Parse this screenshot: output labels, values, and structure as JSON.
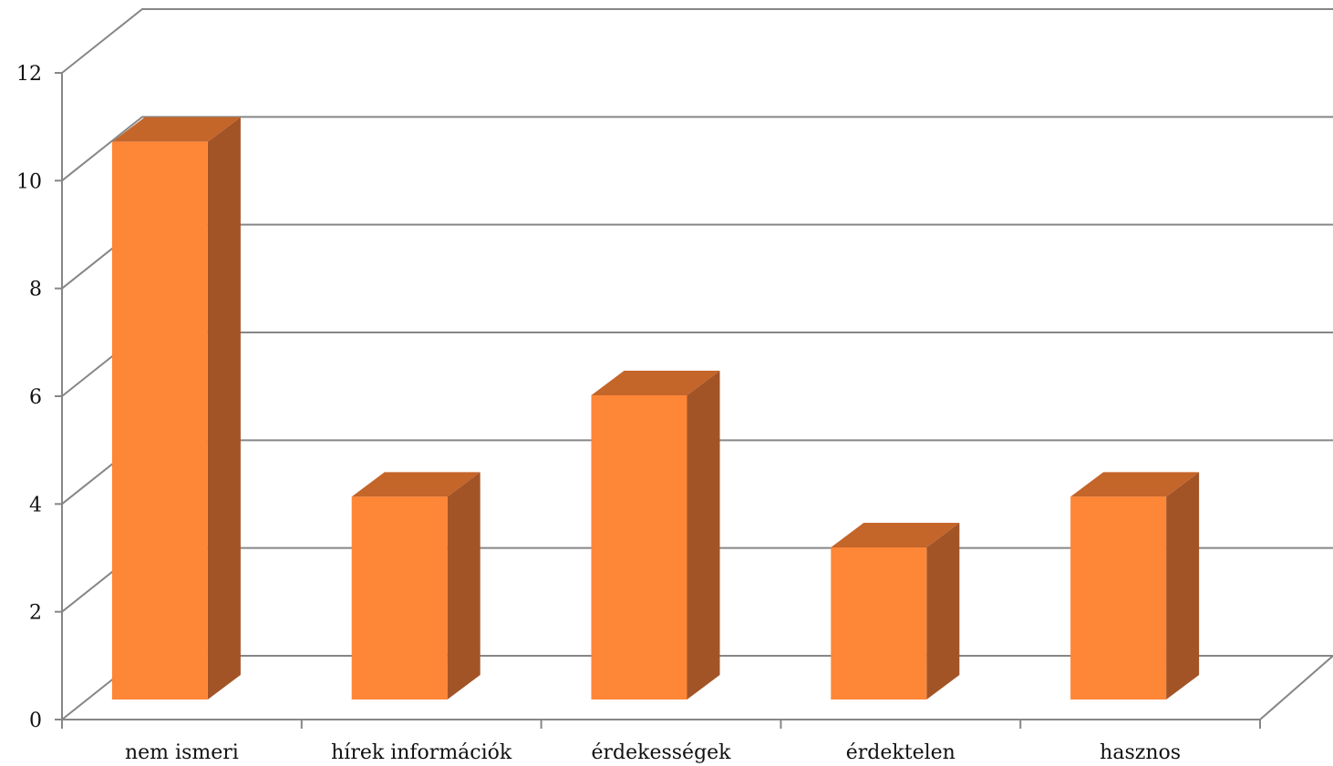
{
  "chart_data": {
    "type": "bar",
    "categories": [
      "nem ismeri",
      "hírek információk",
      "érdekességek",
      "érdektelen",
      "hasznos"
    ],
    "values": [
      11,
      4,
      6,
      3,
      4
    ],
    "ylim": [
      0,
      12
    ],
    "yticks": [
      "0",
      "2",
      "4",
      "6",
      "8",
      "10",
      "12"
    ],
    "grid": true,
    "three_d": true,
    "legend": "none",
    "colors": {
      "bar_front": "#fe8637",
      "bar_top": "#c4652a",
      "bar_side": "#a35427",
      "grid": "#868686"
    }
  }
}
